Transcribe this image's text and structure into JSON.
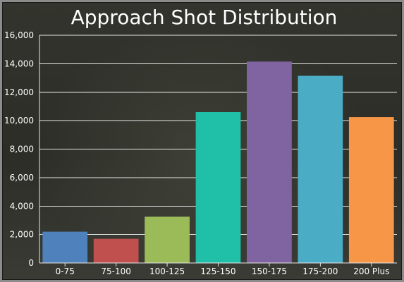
{
  "chart_data": {
    "type": "bar",
    "title": "Approach Shot Distribution",
    "xlabel": "",
    "ylabel": "",
    "categories": [
      "0-75",
      "75-100",
      "100-125",
      "125-150",
      "150-175",
      "175-200",
      "200 Plus"
    ],
    "values": [
      2200,
      1700,
      3250,
      10600,
      14150,
      13150,
      10250
    ],
    "colors": [
      "#4f81bd",
      "#c0504d",
      "#9bbb59",
      "#20bfa8",
      "#8064a2",
      "#4bacc6",
      "#f79646"
    ],
    "yticks": [
      "0",
      "2,000",
      "4,000",
      "6,000",
      "8,000",
      "10,000",
      "12,000",
      "14,000",
      "16,000"
    ],
    "ylim": [
      0,
      16000
    ],
    "grid": true,
    "legend": "none"
  }
}
